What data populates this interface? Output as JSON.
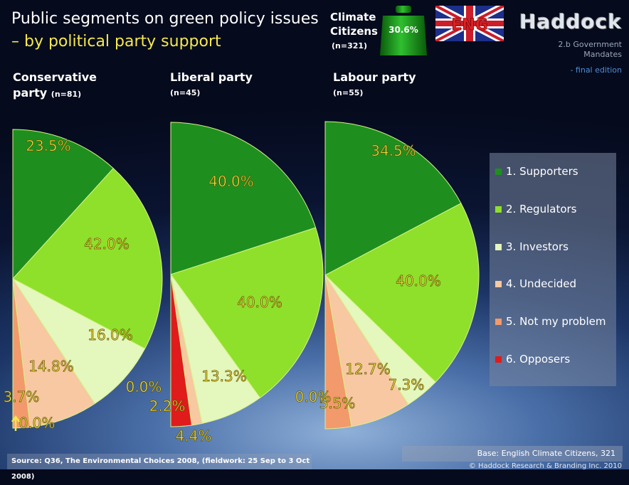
{
  "header": {
    "title_line1": "Public segments on green policy issues",
    "title_line2": "– by political party support",
    "climate_label_1": "Climate",
    "climate_label_2": "Citizens",
    "climate_n": "(n=321)",
    "climate_value": "30.6%",
    "flag_text": "ENG",
    "brand": "Haddock",
    "subtitle_1": "2.b Government",
    "subtitle_2": "Mandates",
    "edition": "- final edition"
  },
  "parties": [
    {
      "name": "Conservative",
      "name2": "party",
      "n": "(n=81)"
    },
    {
      "name": "Liberal party",
      "name2": "",
      "n": "(n=45)"
    },
    {
      "name": "Labour party",
      "name2": "",
      "n": "(n=55)"
    }
  ],
  "legend": [
    "1. Supporters",
    "2. Regulators",
    "3. Investors",
    "4. Undecided",
    "5. Not my problem",
    "6. Opposers"
  ],
  "colors": [
    "#1e8f1e",
    "#8ee02a",
    "#e4f7bd",
    "#f7c8a1",
    "#f29a6b",
    "#e01b1b"
  ],
  "footer": {
    "source": "Source: Q36, The Environmental Choices 2008, (fieldwork: 25 Sep to 3 Oct 2008)",
    "base": "Base: English Climate Citizens, 321",
    "copyright": "© Haddock Research & Branding Inc. 2010"
  },
  "chart_data": [
    {
      "type": "pie",
      "title": "Conservative party (n=81)",
      "categories": [
        "1. Supporters",
        "2. Regulators",
        "3. Investors",
        "4. Undecided",
        "5. Not my problem",
        "6. Opposers"
      ],
      "values": [
        23.5,
        42.0,
        16.0,
        14.8,
        3.7,
        0.0
      ],
      "labels": [
        "23.5%",
        "42.0%",
        "16.0%",
        "14.8%",
        "3.7%",
        "0.0%"
      ]
    },
    {
      "type": "pie",
      "title": "Liberal party (n=45)",
      "categories": [
        "1. Supporters",
        "2. Regulators",
        "3. Investors",
        "4. Undecided",
        "5. Not my problem",
        "6. Opposers"
      ],
      "values": [
        40.0,
        40.0,
        13.3,
        2.2,
        0.0,
        4.4
      ],
      "labels": [
        "40.0%",
        "40.0%",
        "13.3%",
        "2.2%",
        "0.0%",
        "4.4%"
      ]
    },
    {
      "type": "pie",
      "title": "Labour party (n=55)",
      "categories": [
        "1. Supporters",
        "2. Regulators",
        "3. Investors",
        "4. Undecided",
        "5. Not my problem",
        "6. Opposers"
      ],
      "values": [
        34.5,
        40.0,
        7.3,
        12.7,
        5.5,
        0.0
      ],
      "labels": [
        "34.5%",
        "40.0%",
        "7.3%",
        "12.7%",
        "5.5%",
        "0.0%"
      ]
    }
  ]
}
